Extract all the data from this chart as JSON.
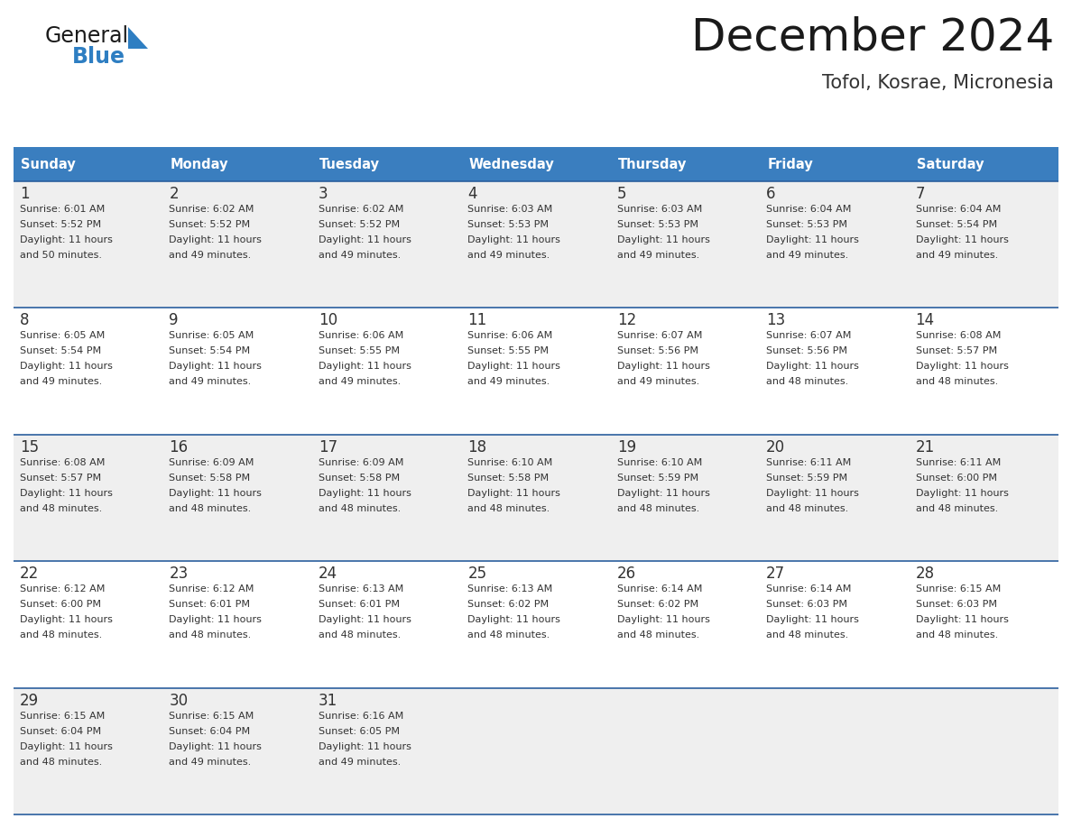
{
  "title": "December 2024",
  "subtitle": "Tofol, Kosrae, Micronesia",
  "header_color": "#3A7EBF",
  "header_text_color": "#FFFFFF",
  "cell_bg_even": "#EFEFEF",
  "cell_bg_odd": "#FFFFFF",
  "divider_color": "#2B5F9E",
  "text_color": "#333333",
  "days_of_week": [
    "Sunday",
    "Monday",
    "Tuesday",
    "Wednesday",
    "Thursday",
    "Friday",
    "Saturday"
  ],
  "calendar": [
    [
      {
        "day": "1",
        "sunrise": "6:01 AM",
        "sunset": "5:52 PM",
        "daylight": "11 hours",
        "daylight2": "and 50 minutes."
      },
      {
        "day": "2",
        "sunrise": "6:02 AM",
        "sunset": "5:52 PM",
        "daylight": "11 hours",
        "daylight2": "and 49 minutes."
      },
      {
        "day": "3",
        "sunrise": "6:02 AM",
        "sunset": "5:52 PM",
        "daylight": "11 hours",
        "daylight2": "and 49 minutes."
      },
      {
        "day": "4",
        "sunrise": "6:03 AM",
        "sunset": "5:53 PM",
        "daylight": "11 hours",
        "daylight2": "and 49 minutes."
      },
      {
        "day": "5",
        "sunrise": "6:03 AM",
        "sunset": "5:53 PM",
        "daylight": "11 hours",
        "daylight2": "and 49 minutes."
      },
      {
        "day": "6",
        "sunrise": "6:04 AM",
        "sunset": "5:53 PM",
        "daylight": "11 hours",
        "daylight2": "and 49 minutes."
      },
      {
        "day": "7",
        "sunrise": "6:04 AM",
        "sunset": "5:54 PM",
        "daylight": "11 hours",
        "daylight2": "and 49 minutes."
      }
    ],
    [
      {
        "day": "8",
        "sunrise": "6:05 AM",
        "sunset": "5:54 PM",
        "daylight": "11 hours",
        "daylight2": "and 49 minutes."
      },
      {
        "day": "9",
        "sunrise": "6:05 AM",
        "sunset": "5:54 PM",
        "daylight": "11 hours",
        "daylight2": "and 49 minutes."
      },
      {
        "day": "10",
        "sunrise": "6:06 AM",
        "sunset": "5:55 PM",
        "daylight": "11 hours",
        "daylight2": "and 49 minutes."
      },
      {
        "day": "11",
        "sunrise": "6:06 AM",
        "sunset": "5:55 PM",
        "daylight": "11 hours",
        "daylight2": "and 49 minutes."
      },
      {
        "day": "12",
        "sunrise": "6:07 AM",
        "sunset": "5:56 PM",
        "daylight": "11 hours",
        "daylight2": "and 49 minutes."
      },
      {
        "day": "13",
        "sunrise": "6:07 AM",
        "sunset": "5:56 PM",
        "daylight": "11 hours",
        "daylight2": "and 48 minutes."
      },
      {
        "day": "14",
        "sunrise": "6:08 AM",
        "sunset": "5:57 PM",
        "daylight": "11 hours",
        "daylight2": "and 48 minutes."
      }
    ],
    [
      {
        "day": "15",
        "sunrise": "6:08 AM",
        "sunset": "5:57 PM",
        "daylight": "11 hours",
        "daylight2": "and 48 minutes."
      },
      {
        "day": "16",
        "sunrise": "6:09 AM",
        "sunset": "5:58 PM",
        "daylight": "11 hours",
        "daylight2": "and 48 minutes."
      },
      {
        "day": "17",
        "sunrise": "6:09 AM",
        "sunset": "5:58 PM",
        "daylight": "11 hours",
        "daylight2": "and 48 minutes."
      },
      {
        "day": "18",
        "sunrise": "6:10 AM",
        "sunset": "5:58 PM",
        "daylight": "11 hours",
        "daylight2": "and 48 minutes."
      },
      {
        "day": "19",
        "sunrise": "6:10 AM",
        "sunset": "5:59 PM",
        "daylight": "11 hours",
        "daylight2": "and 48 minutes."
      },
      {
        "day": "20",
        "sunrise": "6:11 AM",
        "sunset": "5:59 PM",
        "daylight": "11 hours",
        "daylight2": "and 48 minutes."
      },
      {
        "day": "21",
        "sunrise": "6:11 AM",
        "sunset": "6:00 PM",
        "daylight": "11 hours",
        "daylight2": "and 48 minutes."
      }
    ],
    [
      {
        "day": "22",
        "sunrise": "6:12 AM",
        "sunset": "6:00 PM",
        "daylight": "11 hours",
        "daylight2": "and 48 minutes."
      },
      {
        "day": "23",
        "sunrise": "6:12 AM",
        "sunset": "6:01 PM",
        "daylight": "11 hours",
        "daylight2": "and 48 minutes."
      },
      {
        "day": "24",
        "sunrise": "6:13 AM",
        "sunset": "6:01 PM",
        "daylight": "11 hours",
        "daylight2": "and 48 minutes."
      },
      {
        "day": "25",
        "sunrise": "6:13 AM",
        "sunset": "6:02 PM",
        "daylight": "11 hours",
        "daylight2": "and 48 minutes."
      },
      {
        "day": "26",
        "sunrise": "6:14 AM",
        "sunset": "6:02 PM",
        "daylight": "11 hours",
        "daylight2": "and 48 minutes."
      },
      {
        "day": "27",
        "sunrise": "6:14 AM",
        "sunset": "6:03 PM",
        "daylight": "11 hours",
        "daylight2": "and 48 minutes."
      },
      {
        "day": "28",
        "sunrise": "6:15 AM",
        "sunset": "6:03 PM",
        "daylight": "11 hours",
        "daylight2": "and 48 minutes."
      }
    ],
    [
      {
        "day": "29",
        "sunrise": "6:15 AM",
        "sunset": "6:04 PM",
        "daylight": "11 hours",
        "daylight2": "and 48 minutes."
      },
      {
        "day": "30",
        "sunrise": "6:15 AM",
        "sunset": "6:04 PM",
        "daylight": "11 hours",
        "daylight2": "and 49 minutes."
      },
      {
        "day": "31",
        "sunrise": "6:16 AM",
        "sunset": "6:05 PM",
        "daylight": "11 hours",
        "daylight2": "and 49 minutes."
      },
      null,
      null,
      null,
      null
    ]
  ]
}
